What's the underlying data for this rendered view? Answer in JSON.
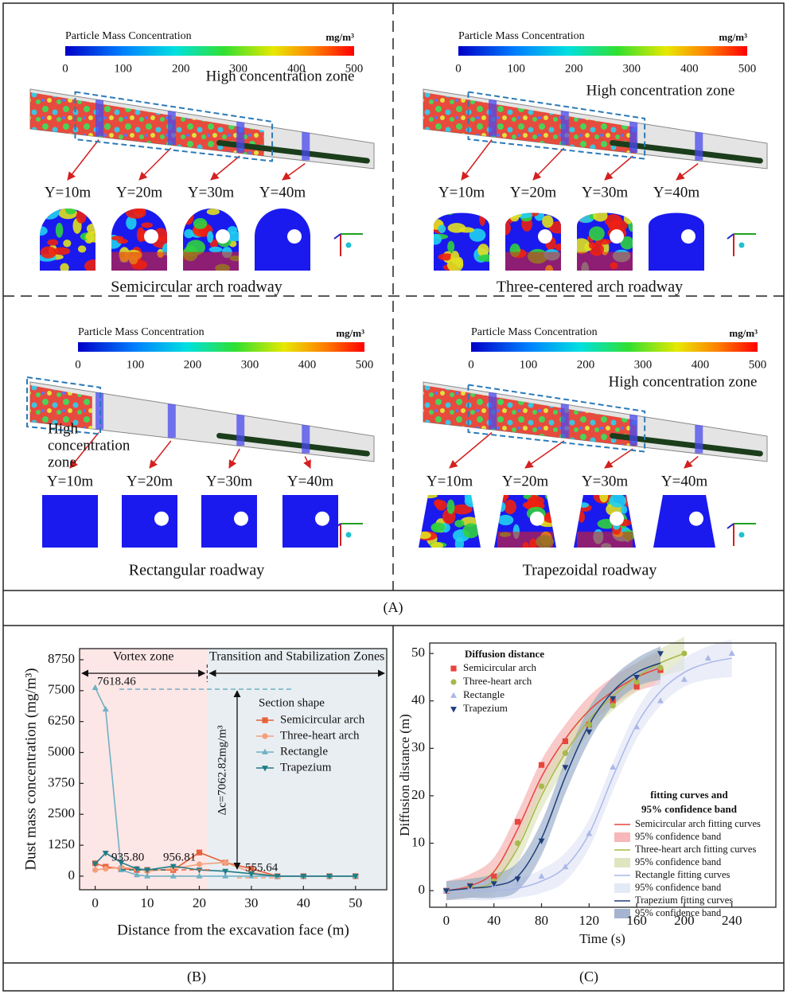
{
  "panel_a": {
    "label": "(A)",
    "colorbar_title": "Particle Mass Concentration",
    "colorbar_unit": "mg/m³",
    "colorbar_ticks": [
      0,
      100,
      200,
      300,
      400,
      500
    ],
    "quadrants": [
      {
        "caption": "Semicircular arch roadway",
        "shape": "semicircular",
        "zone_label": [
          "High concentration zone"
        ],
        "sections": [
          "Y=10m",
          "Y=20m",
          "Y=30m",
          "Y=40m"
        ]
      },
      {
        "caption": "Three-centered arch roadway",
        "shape": "three-centered",
        "zone_label": [
          "High concentration zone"
        ],
        "sections": [
          "Y=10m",
          "Y=20m",
          "Y=30m",
          "Y=40m"
        ]
      },
      {
        "caption": "Rectangular roadway",
        "shape": "rectangular",
        "zone_label": [
          "High",
          "concentration",
          "zone"
        ],
        "sections": [
          "Y=10m",
          "Y=20m",
          "Y=30m",
          "Y=40m"
        ]
      },
      {
        "caption": "Trapezoidal roadway",
        "shape": "trapezoidal",
        "zone_label": [
          "High concentration zone"
        ],
        "sections": [
          "Y=10m",
          "Y=20m",
          "Y=30m",
          "Y=40m"
        ]
      }
    ]
  },
  "chart_data": [
    {
      "type": "line",
      "label": "(B)",
      "xlabel": "Distance from the excavation face (m)",
      "ylabel": "Dust mass concentration (mg/m³)",
      "x": [
        0,
        2,
        5,
        8,
        10,
        15,
        20,
        25,
        30,
        35,
        40,
        45,
        50
      ],
      "series": [
        {
          "name": "Semicircular arch",
          "color": "#e8603a",
          "marker": "square",
          "values": [
            520,
            380,
            300,
            250,
            250,
            250,
            956.81,
            550,
            300,
            0,
            0,
            0,
            0
          ]
        },
        {
          "name": "Three-heart arch",
          "color": "#f4a07a",
          "marker": "circle",
          "values": [
            250,
            300,
            350,
            300,
            200,
            300,
            480,
            555.64,
            150,
            0,
            0,
            0,
            0
          ]
        },
        {
          "name": "Rectangle",
          "color": "#6fb1c4",
          "marker": "triangle",
          "values": [
            7618.46,
            6750,
            250,
            50,
            0,
            0,
            0,
            0,
            0,
            0,
            0,
            0,
            0
          ]
        },
        {
          "name": "Trapezium",
          "color": "#207d87",
          "marker": "triangle-down",
          "values": [
            500,
            935.8,
            550,
            300,
            250,
            400,
            250,
            200,
            100,
            0,
            0,
            0,
            0
          ]
        }
      ],
      "xlim": [
        -3,
        56
      ],
      "xticks": [
        0,
        10,
        20,
        30,
        40,
        50
      ],
      "ylim": [
        -550,
        9200
      ],
      "yticks": [
        0,
        1250,
        2500,
        3750,
        5000,
        6250,
        7500,
        8750
      ],
      "legend_title": "Section shape",
      "zones": [
        {
          "label": "Vortex zone",
          "range": [
            -3,
            21.5
          ],
          "color": "#fde6e6"
        },
        {
          "label": "Transition and Stabilization Zones",
          "range": [
            21.5,
            56
          ],
          "color": "#e9eef2"
        }
      ],
      "annotations": [
        "7618.46",
        "935.80",
        "956.81",
        "555.64",
        "Δc=7062.82mg/m³"
      ]
    },
    {
      "type": "scatter",
      "label": "(C)",
      "xlabel": "Time (s)",
      "ylabel": "Diffusion distance (m)",
      "legend_title": "Diffusion distance",
      "fit_legend_title": [
        "fitting curves and",
        "95% confidence band"
      ],
      "series": [
        {
          "name": "Semicircular arch",
          "color": "#e8453c",
          "band_color": "#f4a6a6",
          "marker": "square",
          "fit_name": "Semicircular arch fitting curves",
          "band_name": "95% confidence band",
          "x": [
            0,
            20,
            40,
            60,
            80,
            100,
            120,
            140,
            160,
            180
          ],
          "values": [
            0,
            1,
            3,
            14.5,
            26.5,
            31.5,
            35,
            40,
            43,
            46.5
          ],
          "fit": [
            0,
            1,
            4,
            13,
            24,
            32,
            38,
            42,
            45,
            47
          ],
          "band": [
            2,
            2.5,
            3,
            3.5,
            3.5,
            3,
            3,
            3,
            3,
            3.5
          ]
        },
        {
          "name": "Three-heart arch",
          "color": "#a8b84a",
          "band_color": "#d8dfb0",
          "marker": "circle",
          "fit_name": "Three-heart arch fitting curves",
          "band_name": "95% confidence band",
          "x": [
            0,
            20,
            40,
            60,
            80,
            100,
            120,
            140,
            160,
            180,
            200
          ],
          "values": [
            0,
            1,
            2,
            10,
            22,
            29,
            35,
            39,
            44,
            47,
            50
          ],
          "fit": [
            0,
            0.5,
            2,
            9,
            20,
            29,
            36,
            41,
            45,
            48,
            50
          ],
          "band": [
            2,
            2,
            2.5,
            3,
            3,
            3,
            3,
            3,
            3,
            3,
            3.5
          ]
        },
        {
          "name": "Rectangle",
          "color": "#aab8e8",
          "band_color": "#dde3f5",
          "marker": "triangle",
          "fit_name": "Rectangle fitting curves",
          "band_name": "95% confidence band",
          "x": [
            0,
            20,
            40,
            60,
            80,
            100,
            120,
            140,
            160,
            180,
            200,
            220,
            240
          ],
          "values": [
            0,
            0.5,
            1,
            1.5,
            3,
            5,
            12,
            26,
            34.5,
            40,
            44.5,
            49,
            50
          ],
          "fit": [
            0,
            0,
            0,
            0.5,
            2,
            5,
            12,
            24,
            35,
            42,
            46,
            48,
            49
          ],
          "band": [
            2,
            2,
            2,
            2,
            2.5,
            3,
            3,
            3,
            3,
            3,
            3,
            3.5,
            4
          ]
        },
        {
          "name": "Trapezium",
          "color": "#1f3f7a",
          "band_color": "#8ea3c4",
          "marker": "triangle-down",
          "fit_name": "Trapezium fitting curves",
          "band_name": "95% confidence band",
          "x": [
            0,
            20,
            40,
            60,
            80,
            100,
            120,
            140,
            160,
            180
          ],
          "values": [
            0,
            1,
            1.5,
            2.5,
            10.5,
            26,
            33.5,
            40.5,
            45,
            50
          ],
          "fit": [
            0,
            0.5,
            1,
            3,
            11,
            24,
            35,
            42,
            46,
            48
          ],
          "band": [
            2,
            2,
            2.5,
            3,
            3.5,
            3.5,
            3.5,
            3,
            3,
            3.5
          ]
        }
      ],
      "xlim": [
        -14,
        277
      ],
      "xticks": [
        0,
        40,
        80,
        120,
        160,
        200,
        240
      ],
      "ylim": [
        -3.5,
        52.2
      ],
      "yticks": [
        0,
        10,
        20,
        30,
        40,
        50
      ]
    }
  ]
}
